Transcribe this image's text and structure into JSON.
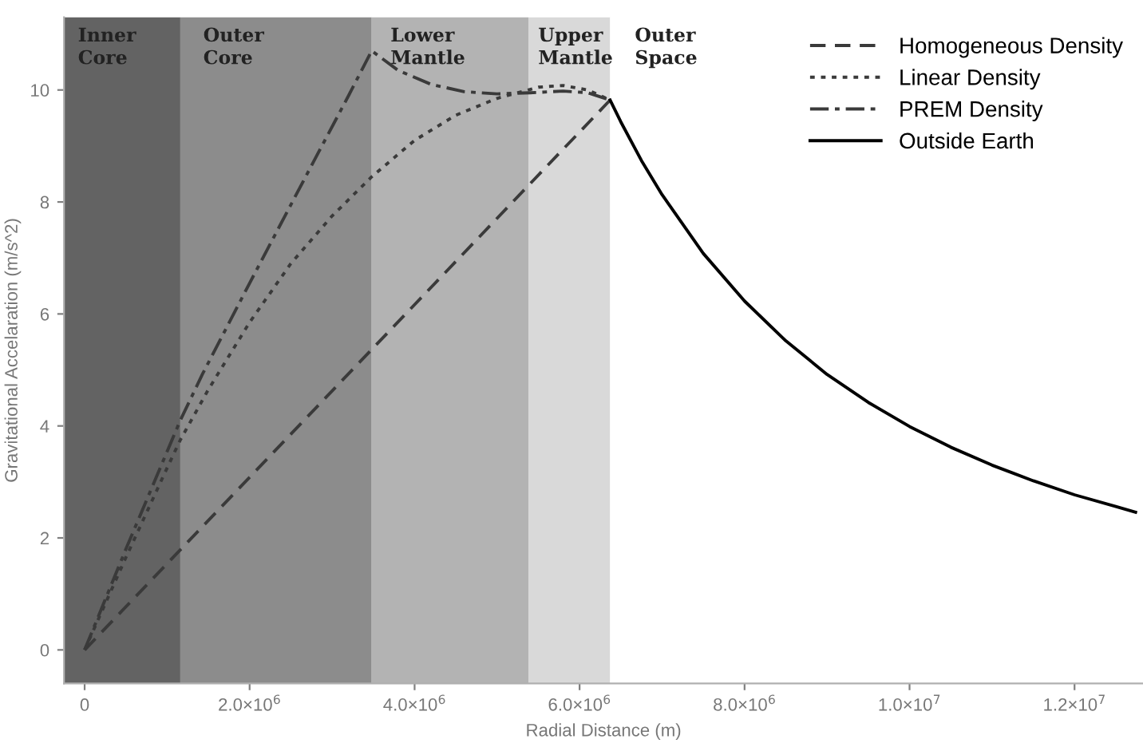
{
  "chart_data": {
    "type": "line",
    "xlabel": "Radial Distance (m)",
    "ylabel": "Gravitational Accelaration (m/s^2)",
    "xlim": [
      -250000,
      12830000
    ],
    "ylim": [
      -0.6,
      11.3
    ],
    "xticks": [
      0,
      {
        "value": 2000000,
        "label": "2.0×10$^{6}$"
      },
      {
        "value": 4000000,
        "label": "4.0×10$^{6}$"
      },
      {
        "value": 6000000,
        "label": "6.0×10$^{6}$"
      },
      {
        "value": 8000000,
        "label": "8.0×10$^{6}$"
      },
      {
        "value": 10000000,
        "label": "1.0×10$^{7}$"
      },
      {
        "value": 12000000,
        "label": "1.2×10$^{7}$"
      }
    ],
    "yticks": [
      0,
      2,
      4,
      6,
      8,
      10
    ],
    "grid": false,
    "legend": "top right",
    "bands": [
      {
        "axis": "x",
        "from": -250000,
        "to": 1160000,
        "label": "Inner\nCore",
        "color": "#636363"
      },
      {
        "axis": "x",
        "from": 1160000,
        "to": 3480000,
        "label": "Outer\nCore",
        "color": "#8c8c8c"
      },
      {
        "axis": "x",
        "from": 3480000,
        "to": 5380000,
        "label": "Lower\nMantle",
        "color": "#b3b3b3"
      },
      {
        "axis": "x",
        "from": 5380000,
        "to": 6370000,
        "label": "Upper\nMantle",
        "color": "#d9d9d9"
      },
      {
        "axis": "x",
        "from": 6370000,
        "to": 12830000,
        "label": "Outer\nSpace",
        "color": "#ffffff"
      }
    ],
    "series": [
      {
        "name": "Homogeneous Density",
        "color": "#3a3a3a",
        "line_style": "dashed",
        "x": [
          0,
          6370000
        ],
        "values": [
          0,
          9.82
        ]
      },
      {
        "name": "Linear Density",
        "color": "#3a3a3a",
        "line_style": "dotted",
        "x": [
          0,
          500000,
          1000000,
          1160000,
          1500000,
          2000000,
          2500000,
          3000000,
          3480000,
          4000000,
          4500000,
          5000000,
          5500000,
          5800000,
          6100000,
          6370000
        ],
        "values": [
          0,
          1.65,
          3.25,
          3.75,
          4.65,
          5.85,
          6.9,
          7.75,
          8.45,
          9.1,
          9.55,
          9.85,
          10.05,
          10.08,
          10.0,
          9.82
        ]
      },
      {
        "name": "PREM Density",
        "color": "#3a3a3a",
        "line_style": "dashdot",
        "x": [
          0,
          500000,
          1160000,
          1430000,
          2000000,
          2500000,
          2840000,
          3200000,
          3480000,
          3800000,
          4200000,
          4600000,
          5000000,
          5400000,
          5800000,
          6100000,
          6370000
        ],
        "values": [
          0,
          1.8,
          4.1,
          4.93,
          6.55,
          7.95,
          8.9,
          9.9,
          10.7,
          10.35,
          10.1,
          9.97,
          9.93,
          9.95,
          9.98,
          9.95,
          9.82
        ]
      },
      {
        "name": "Outside Earth",
        "color": "#000000",
        "line_style": "solid",
        "x": [
          6370000,
          6500000,
          6750000,
          7000000,
          7500000,
          8000000,
          8500000,
          9000000,
          9500000,
          10000000,
          10500000,
          11000000,
          11500000,
          12000000,
          12500000,
          12740000
        ],
        "values": [
          9.82,
          9.43,
          8.74,
          8.13,
          7.08,
          6.23,
          5.52,
          4.92,
          4.42,
          3.99,
          3.62,
          3.3,
          3.02,
          2.77,
          2.56,
          2.46
        ]
      }
    ]
  }
}
